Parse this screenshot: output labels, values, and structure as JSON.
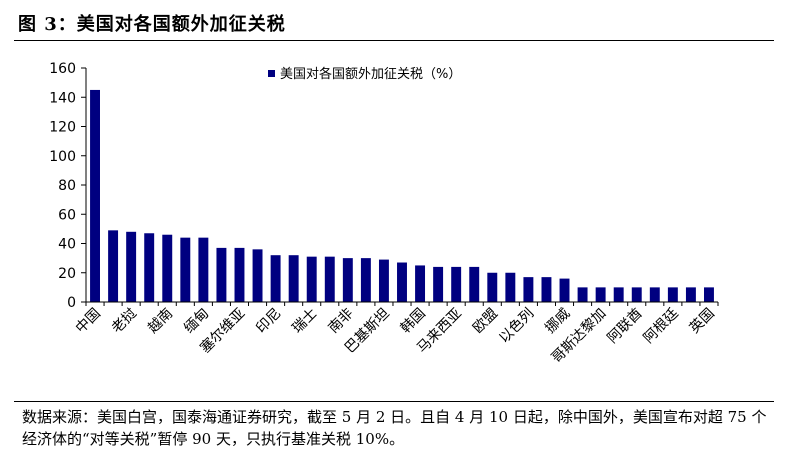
{
  "figure": {
    "title": "图 3：美国对各国额外加征关税",
    "source_note": "数据来源：美国白宫，国泰海通证券研究，截至 5 月 2 日。且自 4 月 10 日起，除中国外，美国宣布对超 75 个经济体的“对等关税”暂停 90 天，只执行基准关税 10%。"
  },
  "chart_data": {
    "type": "bar",
    "title": "",
    "xlabel": "",
    "ylabel": "",
    "ylim": [
      0,
      160
    ],
    "yticks": [
      0,
      20,
      40,
      60,
      80,
      100,
      120,
      140,
      160
    ],
    "grid": false,
    "legend_position": "top-center",
    "bar_color": "#000080",
    "series": [
      {
        "name": "美国对各国额外加征关税（%）",
        "values": [
          145,
          49,
          48,
          47,
          46,
          44,
          44,
          37,
          37,
          36,
          32,
          32,
          31,
          31,
          30,
          30,
          29,
          27,
          25,
          24,
          24,
          24,
          20,
          20,
          17,
          17,
          16,
          10,
          10,
          10,
          10,
          10,
          10,
          10,
          10
        ]
      }
    ],
    "category_labels_shown": [
      {
        "index": 0,
        "label": "中国"
      },
      {
        "index": 2,
        "label": "老挝"
      },
      {
        "index": 4,
        "label": "越南"
      },
      {
        "index": 6,
        "label": "缅甸"
      },
      {
        "index": 8,
        "label": "塞尔维亚"
      },
      {
        "index": 10,
        "label": "印尼"
      },
      {
        "index": 12,
        "label": "瑞士"
      },
      {
        "index": 14,
        "label": "南非"
      },
      {
        "index": 16,
        "label": "巴基斯坦"
      },
      {
        "index": 18,
        "label": "韩国"
      },
      {
        "index": 20,
        "label": "马来西亚"
      },
      {
        "index": 22,
        "label": "欧盟"
      },
      {
        "index": 24,
        "label": "以色列"
      },
      {
        "index": 26,
        "label": "挪威"
      },
      {
        "index": 28,
        "label": "哥斯达黎加"
      },
      {
        "index": 30,
        "label": "阿联酋"
      },
      {
        "index": 32,
        "label": "阿根廷"
      },
      {
        "index": 34,
        "label": "英国"
      }
    ]
  }
}
